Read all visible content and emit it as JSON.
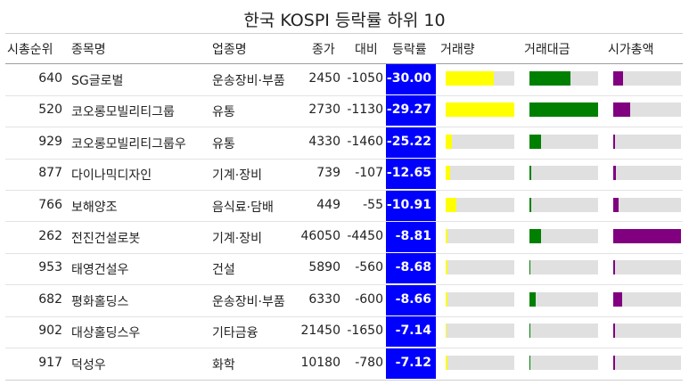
{
  "chart_data": {
    "type": "table",
    "title": "한국 KOSPI 등락률 하위 10",
    "columns": [
      "시총순위",
      "종목명",
      "업종명",
      "종가",
      "대비",
      "등락률",
      "거래량",
      "거래대금",
      "시가총액"
    ],
    "colors": {
      "pct_bg": "#0000ff",
      "volume": "#ffff00",
      "value": "#008000",
      "mcap": "#800080",
      "track": "#e0e0e0"
    },
    "rows": [
      {
        "rank": "640",
        "name": "SG글로벌",
        "sector": "운송장비·부품",
        "close": "2450",
        "diff": "-1050",
        "pct": "-30.00",
        "volume": 0.7,
        "value": 0.6,
        "mcap": 0.15
      },
      {
        "rank": "520",
        "name": "코오롱모빌리티그룹",
        "sector": "유통",
        "close": "2730",
        "diff": "-1130",
        "pct": "-29.27",
        "volume": 1.0,
        "value": 1.0,
        "mcap": 0.25
      },
      {
        "rank": "929",
        "name": "코오롱모빌리티그룹우",
        "sector": "유통",
        "close": "4330",
        "diff": "-1460",
        "pct": "-25.22",
        "volume": 0.09,
        "value": 0.17,
        "mcap": 0.02
      },
      {
        "rank": "877",
        "name": "다이나믹디자인",
        "sector": "기계·장비",
        "close": "739",
        "diff": "-107",
        "pct": "-12.65",
        "volume": 0.07,
        "value": 0.02,
        "mcap": 0.04
      },
      {
        "rank": "766",
        "name": "보해양조",
        "sector": "음식료·담배",
        "close": "449",
        "diff": "-55",
        "pct": "-10.91",
        "volume": 0.15,
        "value": 0.02,
        "mcap": 0.08
      },
      {
        "rank": "262",
        "name": "전진건설로봇",
        "sector": "기계·장비",
        "close": "46050",
        "diff": "-4450",
        "pct": "-8.81",
        "volume": 0.02,
        "value": 0.17,
        "mcap": 1.0
      },
      {
        "rank": "953",
        "name": "태영건설우",
        "sector": "건설",
        "close": "5890",
        "diff": "-560",
        "pct": "-8.68",
        "volume": 0.02,
        "value": 0.01,
        "mcap": 0.02
      },
      {
        "rank": "682",
        "name": "평화홀딩스",
        "sector": "운송장비·부품",
        "close": "6330",
        "diff": "-600",
        "pct": "-8.66",
        "volume": 0.03,
        "value": 0.09,
        "mcap": 0.13
      },
      {
        "rank": "902",
        "name": "대상홀딩스우",
        "sector": "기타금융",
        "close": "21450",
        "diff": "-1650",
        "pct": "-7.14",
        "volume": 0.01,
        "value": 0.01,
        "mcap": 0.03
      },
      {
        "rank": "917",
        "name": "덕성우",
        "sector": "화학",
        "close": "10180",
        "diff": "-780",
        "pct": "-7.12",
        "volume": 0.02,
        "value": 0.01,
        "mcap": 0.02
      }
    ]
  }
}
